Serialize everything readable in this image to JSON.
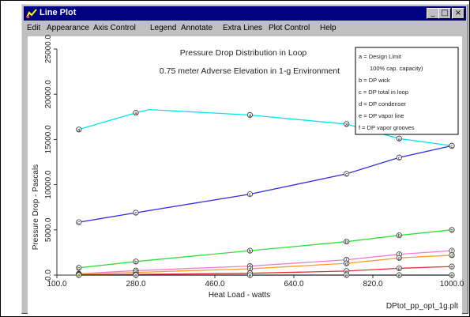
{
  "window": {
    "title": "Line Plot"
  },
  "menu": [
    "Edit",
    "Appearance",
    "Axis Control",
    "Legend",
    "Annotate",
    "Extra Lines",
    "Plot Control",
    "Help"
  ],
  "colors": {
    "titlebar": "#000080",
    "window": "#c0c0c0"
  },
  "icons": {
    "app": "line-plot-app-icon",
    "minimize": "minimize-icon",
    "maximize": "maximize-icon",
    "close": "close-icon"
  },
  "chart_data": {
    "type": "line",
    "title": "Pressure Drop Distribution in Loop",
    "subtitle": "0.75 meter Adverse Elevation in 1-g Environment",
    "xlabel": "Heat Load - watts",
    "ylabel": "Pressure Drop - Pascals",
    "xlim": [
      100.0,
      1000.0
    ],
    "ylim": [
      0.0,
      25000.0
    ],
    "x_ticks": [
      "100.0",
      "280.0",
      "460.0",
      "640.0",
      "820.0",
      "1000.0"
    ],
    "y_ticks": [
      "0.0",
      "5000.0",
      "10000.0",
      "15000.0",
      "20000.0",
      "25000.0"
    ],
    "grid": false,
    "legend_position": "top-right",
    "legend": [
      "a = Design Limit",
      "100% cap. capacity)",
      "b = DP wick",
      "c = DP total in loop",
      "d = DP condenser",
      "e = DP vapor line",
      "f = DP vapor grooves"
    ],
    "footer_label": "DPtot_pp_opt_1g.plt",
    "series": [
      {
        "marker": "a",
        "color": "#00e5f2",
        "x": [
          150,
          280,
          310,
          540,
          760,
          880,
          1000
        ],
        "y": [
          16100,
          17950,
          18300,
          17700,
          16700,
          15100,
          14300
        ]
      },
      {
        "marker": "c",
        "color": "#3030e0",
        "x": [
          150,
          280,
          540,
          760,
          880,
          1000
        ],
        "y": [
          5850,
          6900,
          8950,
          11200,
          13000,
          14300
        ]
      },
      {
        "marker": "b",
        "color": "#32e03a",
        "x": [
          150,
          280,
          540,
          760,
          880,
          1000
        ],
        "y": [
          800,
          1500,
          2700,
          3700,
          4400,
          5000
        ]
      },
      {
        "marker": "f",
        "color": "#f07ad0",
        "x": [
          150,
          280,
          540,
          760,
          880,
          1000
        ],
        "y": [
          150,
          500,
          1000,
          1700,
          2300,
          2700
        ]
      },
      {
        "marker": "d",
        "color": "#ff9a2a",
        "x": [
          150,
          280,
          540,
          760,
          880,
          1000
        ],
        "y": [
          100,
          300,
          700,
          1300,
          1900,
          2200
        ]
      },
      {
        "marker": "e",
        "color": "#e03030",
        "x": [
          150,
          280,
          540,
          760,
          880,
          1000
        ],
        "y": [
          20,
          80,
          200,
          450,
          750,
          950
        ]
      },
      {
        "marker": "e",
        "color": "#222222",
        "x": [
          150,
          280,
          540,
          760,
          880,
          1000
        ],
        "y": [
          0,
          0,
          0,
          0,
          0,
          0
        ]
      }
    ]
  }
}
